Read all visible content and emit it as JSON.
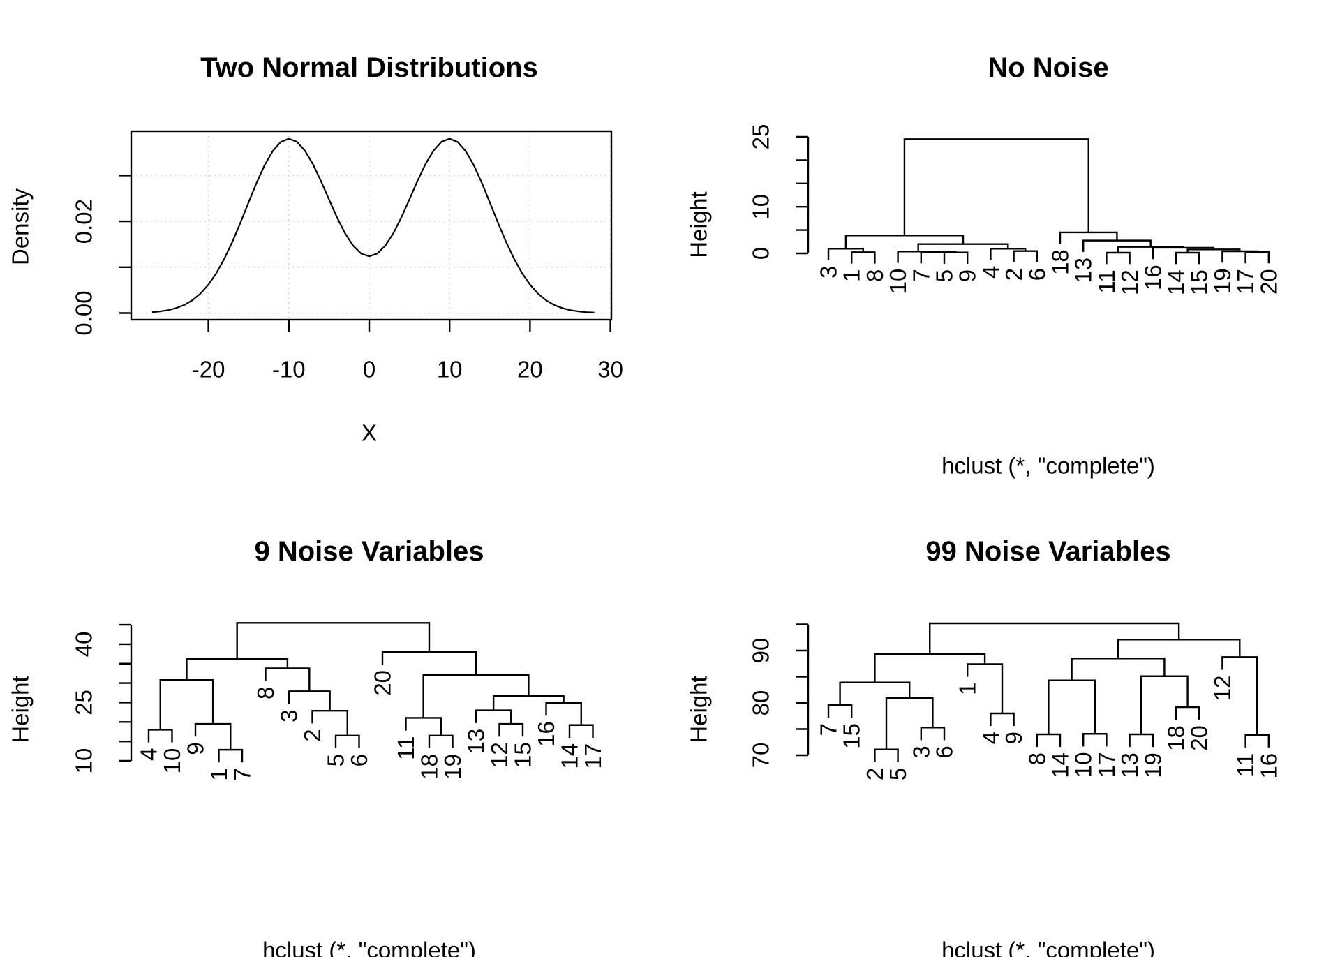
{
  "chart_data": [
    {
      "type": "line",
      "title": "Two Normal Distributions",
      "xlabel": "X",
      "ylabel": "Density",
      "xlim": [
        -29.6,
        30.1
      ],
      "ylim": [
        -0.0015,
        0.0396
      ],
      "grid": true,
      "xticks": [
        {
          "v": -20,
          "label": "-20"
        },
        {
          "v": -10,
          "label": "-10"
        },
        {
          "v": 0,
          "label": "0"
        },
        {
          "v": 10,
          "label": "10"
        },
        {
          "v": 20,
          "label": "20"
        },
        {
          "v": 30,
          "label": "30"
        }
      ],
      "yticks": [
        {
          "v": 0,
          "label": "0.00"
        },
        {
          "v": 0.01,
          "label": ""
        },
        {
          "v": 0.02,
          "label": "0.02"
        },
        {
          "v": 0.03,
          "label": ""
        }
      ],
      "x": [
        -27,
        -26,
        -25,
        -24,
        -23,
        -22,
        -21,
        -20,
        -19,
        -18,
        -17,
        -16,
        -15,
        -14,
        -13,
        -12,
        -11,
        -10,
        -9,
        -8,
        -7,
        -6,
        -5,
        -4,
        -3,
        -2,
        -1,
        0,
        1,
        2,
        3,
        4,
        5,
        6,
        7,
        8,
        9,
        10,
        11,
        12,
        13,
        14,
        15,
        16,
        17,
        18,
        19,
        20,
        21,
        22,
        23,
        24,
        25,
        26,
        27,
        28
      ],
      "y": [
        0.0002,
        0.00037,
        0.00064,
        0.00109,
        0.00177,
        0.00279,
        0.00423,
        0.00619,
        0.00874,
        0.0119,
        0.01562,
        0.01977,
        0.02414,
        0.02842,
        0.03227,
        0.03533,
        0.03731,
        0.03802,
        0.03736,
        0.03544,
        0.03247,
        0.02878,
        0.02478,
        0.02086,
        0.01739,
        0.01469,
        0.01297,
        0.01238,
        0.01297,
        0.01469,
        0.01739,
        0.02086,
        0.02478,
        0.02878,
        0.03247,
        0.03544,
        0.03736,
        0.03802,
        0.03731,
        0.03533,
        0.03227,
        0.02842,
        0.02414,
        0.01977,
        0.01562,
        0.0119,
        0.00874,
        0.00619,
        0.00423,
        0.00279,
        0.00177,
        0.00109,
        0.00064,
        0.00037,
        0.0002,
        0.00011
      ]
    },
    {
      "type": "dendrogram",
      "title": "No Noise",
      "xlabel": "hclust (*, \"complete\")",
      "ylabel": "Height",
      "yticks": [
        {
          "v": 0,
          "label": "0"
        },
        {
          "v": 5,
          "label": ""
        },
        {
          "v": 10,
          "label": "10"
        },
        {
          "v": 15,
          "label": ""
        },
        {
          "v": 20,
          "label": ""
        },
        {
          "v": 25,
          "label": "25"
        }
      ],
      "tree": {
        "h": 24.5,
        "c": [
          {
            "h": 3.85,
            "c": [
              {
                "h": 1.0,
                "c": [
                  "3",
                  {
                    "h": 0.25,
                    "c": [
                      "1",
                      "8"
                    ]
                  }
                ]
              },
              {
                "h": 2.0,
                "c": [
                  {
                    "h": 0.4,
                    "c": [
                      "10",
                      {
                        "h": 0.3,
                        "c": [
                          "7",
                          {
                            "h": 0.2,
                            "c": [
                              "5",
                              "9"
                            ]
                          }
                        ]
                      }
                    ]
                  },
                  {
                    "h": 1.0,
                    "c": [
                      "4",
                      {
                        "h": 0.5,
                        "c": [
                          "2",
                          "6"
                        ]
                      }
                    ]
                  }
                ]
              }
            ]
          },
          {
            "h": 4.5,
            "c": [
              "18",
              {
                "h": 2.75,
                "c": [
                  "13",
                  {
                    "h": 1.4,
                    "c": [
                      {
                        "h": 0.15,
                        "c": [
                          "11",
                          "12"
                        ]
                      },
                      {
                        "h": 1.2,
                        "c": [
                          "16",
                          {
                            "h": 0.85,
                            "c": [
                              {
                                "h": 0.15,
                                "c": [
                                  "14",
                                  "15"
                                ]
                              },
                              {
                                "h": 0.45,
                                "c": [
                                  "19",
                                  {
                                    "h": 0.3,
                                    "c": [
                                      "17",
                                      "20"
                                    ]
                                  }
                                ]
                              }
                            ]
                          }
                        ]
                      }
                    ]
                  }
                ]
              }
            ]
          }
        ]
      }
    },
    {
      "type": "dendrogram",
      "title": "9 Noise Variables",
      "xlabel": "hclust (*, \"complete\")",
      "ylabel": "Height",
      "yticks": [
        {
          "v": 10,
          "label": "10"
        },
        {
          "v": 15,
          "label": ""
        },
        {
          "v": 20,
          "label": ""
        },
        {
          "v": 25,
          "label": "25"
        },
        {
          "v": 30,
          "label": ""
        },
        {
          "v": 35,
          "label": ""
        },
        {
          "v": 40,
          "label": "40"
        },
        {
          "v": 45,
          "label": ""
        }
      ],
      "tree": {
        "h": 45.5,
        "c": [
          {
            "h": 36.2,
            "c": [
              {
                "h": 30.8,
                "c": [
                  {
                    "h": 18.0,
                    "c": [
                      "4",
                      "10"
                    ]
                  },
                  {
                    "h": 19.5,
                    "c": [
                      "9",
                      {
                        "h": 12.85,
                        "c": [
                          "1",
                          "7"
                        ]
                      }
                    ]
                  }
                ]
              },
              {
                "h": 33.8,
                "c": [
                  "8",
                  {
                    "h": 27.9,
                    "c": [
                      "3",
                      {
                        "h": 22.9,
                        "c": [
                          "2",
                          {
                            "h": 16.5,
                            "c": [
                              "5",
                              "6"
                            ]
                          }
                        ]
                      }
                    ]
                  }
                ]
              }
            ]
          },
          {
            "h": 38.05,
            "c": [
              "20",
              {
                "h": 32.1,
                "c": [
                  {
                    "h": 21.05,
                    "c": [
                      "11",
                      {
                        "h": 16.5,
                        "c": [
                          "18",
                          "19"
                        ]
                      }
                    ]
                  },
                  {
                    "h": 26.7,
                    "c": [
                      {
                        "h": 23.0,
                        "c": [
                          "13",
                          {
                            "h": 19.5,
                            "c": [
                              "12",
                              "15"
                            ]
                          }
                        ]
                      },
                      {
                        "h": 24.9,
                        "c": [
                          "16",
                          {
                            "h": 19.2,
                            "c": [
                              "14",
                              "17"
                            ]
                          }
                        ]
                      }
                    ]
                  }
                ]
              }
            ]
          }
        ]
      }
    },
    {
      "type": "dendrogram",
      "title": "99 Noise Variables",
      "xlabel": "hclust (*, \"complete\")",
      "ylabel": "Height",
      "yticks": [
        {
          "v": 70,
          "label": "70"
        },
        {
          "v": 75,
          "label": ""
        },
        {
          "v": 80,
          "label": "80"
        },
        {
          "v": 85,
          "label": ""
        },
        {
          "v": 90,
          "label": "90"
        },
        {
          "v": 95,
          "label": ""
        }
      ],
      "tree": {
        "h": 95.2,
        "c": [
          {
            "h": 89.3,
            "c": [
              {
                "h": 83.9,
                "c": [
                  {
                    "h": 79.6,
                    "c": [
                      "7",
                      "15"
                    ]
                  },
                  {
                    "h": 80.9,
                    "c": [
                      {
                        "h": 71.1,
                        "c": [
                          "2",
                          "5"
                        ]
                      },
                      {
                        "h": 75.3,
                        "c": [
                          "3",
                          "6"
                        ]
                      }
                    ]
                  }
                ]
              },
              {
                "h": 87.4,
                "c": [
                  "1",
                  {
                    "h": 78.0,
                    "c": [
                      "4",
                      "9"
                    ]
                  }
                ]
              }
            ]
          },
          {
            "h": 92.1,
            "c": [
              {
                "h": 88.5,
                "c": [
                  {
                    "h": 84.3,
                    "c": [
                      {
                        "h": 74.0,
                        "c": [
                          "8",
                          "14"
                        ]
                      },
                      {
                        "h": 74.1,
                        "c": [
                          "10",
                          "17"
                        ]
                      }
                    ]
                  },
                  {
                    "h": 85.1,
                    "c": [
                      {
                        "h": 74.0,
                        "c": [
                          "13",
                          "19"
                        ]
                      },
                      {
                        "h": 79.2,
                        "c": [
                          "18",
                          "20"
                        ]
                      }
                    ]
                  }
                ]
              },
              {
                "h": 88.75,
                "c": [
                  "12",
                  {
                    "h": 73.9,
                    "c": [
                      "11",
                      "16"
                    ]
                  }
                ]
              }
            ]
          }
        ]
      }
    }
  ]
}
